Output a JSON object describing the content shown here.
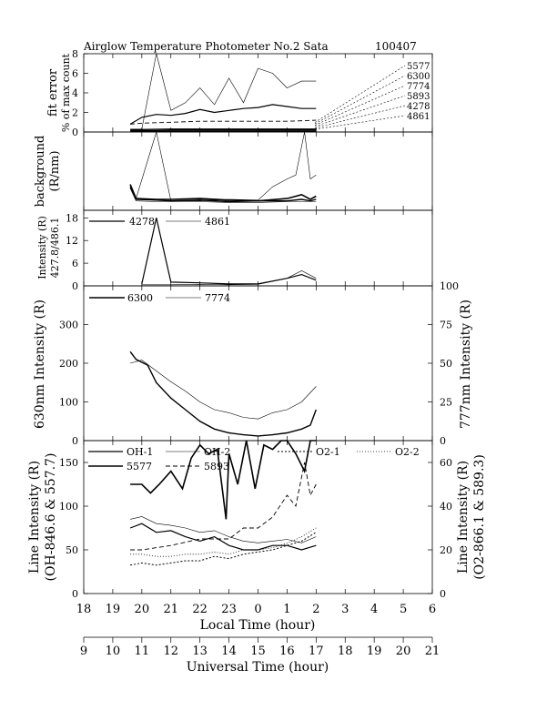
{
  "header": {
    "title": "Airglow Temperature Photometer No.2  Sata",
    "date_code": "100407"
  },
  "x_axes": {
    "local_label": "Local Time (hour)",
    "ut_label": "Universal Time (hour)",
    "local_ticks": [
      "18",
      "19",
      "20",
      "21",
      "22",
      "23",
      "0",
      "1",
      "2",
      "3",
      "4",
      "5",
      "6"
    ],
    "ut_ticks": [
      "9",
      "10",
      "11",
      "12",
      "13",
      "14",
      "15",
      "16",
      "17",
      "18",
      "19",
      "20",
      "21"
    ]
  },
  "chart_data": [
    {
      "type": "line",
      "panel": "fit-error",
      "ylabel": "fit error\n% of max count",
      "ylim": [
        0,
        8
      ],
      "yticks": [
        0,
        2,
        4,
        6,
        8
      ],
      "legend": [
        "5577",
        "6300",
        "7774",
        "5893",
        "4278",
        "4861"
      ],
      "series": [
        {
          "name": "4861",
          "x": [
            19.6,
            20,
            20.5,
            21,
            21.5,
            22,
            22.5,
            23,
            23.5,
            24,
            24.5,
            25,
            25.5,
            26
          ],
          "y": [
            0.3,
            0.3,
            8,
            2.2,
            3.0,
            4.5,
            2.8,
            5.5,
            3.0,
            6.5,
            6.0,
            4.5,
            5.2,
            5.2
          ]
        },
        {
          "name": "4278",
          "x": [
            19.6,
            20,
            20.5,
            21,
            21.5,
            22,
            22.5,
            23,
            23.5,
            24,
            24.5,
            25,
            25.5,
            26
          ],
          "y": [
            0.8,
            1.5,
            1.8,
            1.7,
            1.9,
            2.3,
            2.0,
            2.2,
            2.4,
            2.5,
            2.8,
            2.6,
            2.4,
            2.4
          ]
        },
        {
          "name": "5893",
          "x": [
            19.6,
            20,
            21,
            22,
            23,
            24,
            25,
            26
          ],
          "y": [
            0.8,
            0.9,
            1.0,
            1.1,
            1.1,
            1.1,
            1.1,
            1.2
          ]
        },
        {
          "name": "6300",
          "x": [
            19.6,
            20,
            21,
            22,
            23,
            24,
            25,
            26
          ],
          "y": [
            0.2,
            0.25,
            0.3,
            0.3,
            0.3,
            0.3,
            0.3,
            0.3
          ]
        },
        {
          "name": "7774",
          "x": [
            19.6,
            20,
            21,
            22,
            23,
            24,
            25,
            26
          ],
          "y": [
            0.15,
            0.15,
            0.2,
            0.2,
            0.2,
            0.2,
            0.2,
            0.2
          ]
        },
        {
          "name": "5577",
          "x": [
            19.6,
            20,
            21,
            22,
            23,
            24,
            25,
            26
          ],
          "y": [
            0.1,
            0.1,
            0.1,
            0.1,
            0.1,
            0.1,
            0.1,
            0.1
          ]
        }
      ]
    },
    {
      "type": "line",
      "panel": "background",
      "ylabel": "background\n(R/nm)",
      "series": [
        {
          "name": "4861",
          "x": [
            19.6,
            19.8,
            20.5,
            21,
            22,
            23,
            24,
            24.5,
            25,
            25.3,
            25.6,
            25.8,
            26
          ],
          "y": [
            30,
            15,
            100,
            12,
            12,
            14,
            13,
            30,
            40,
            45,
            100,
            40,
            45
          ]
        },
        {
          "name": "5577",
          "x": [
            19.6,
            19.8,
            20.5,
            21,
            22,
            23,
            24,
            25,
            25.5,
            25.8,
            26
          ],
          "y": [
            33,
            15,
            14,
            14,
            15,
            13,
            12,
            15,
            20,
            14,
            18
          ]
        },
        {
          "name": "6300",
          "x": [
            19.6,
            19.8,
            20.5,
            21,
            22,
            23,
            24,
            25,
            25.5,
            25.8,
            26
          ],
          "y": [
            30,
            14,
            13,
            12,
            13,
            11,
            12,
            12,
            14,
            12,
            14
          ]
        },
        {
          "name": "7774",
          "x": [
            19.6,
            19.8,
            20.5,
            21,
            22,
            23,
            24,
            25,
            26
          ],
          "y": [
            28,
            12,
            11,
            11,
            11,
            10,
            10,
            11,
            11
          ]
        }
      ]
    },
    {
      "type": "line",
      "panel": "intensity-blue",
      "ylabel": "Intensity (R)\n427.8/486.1",
      "ylim": [
        0,
        20
      ],
      "yticks": [
        0,
        6,
        12,
        18
      ],
      "legend": [
        "4278",
        "4861"
      ],
      "series": [
        {
          "name": "4278",
          "x": [
            20,
            20.5,
            21,
            22,
            23,
            24,
            25,
            25.5,
            26
          ],
          "y": [
            0.5,
            18,
            1,
            0.8,
            0.5,
            0.5,
            2,
            3,
            1.5
          ]
        },
        {
          "name": "4861",
          "x": [
            20,
            21,
            22,
            23,
            24,
            25,
            25.5,
            26
          ],
          "y": [
            0.3,
            0.3,
            0.4,
            0.3,
            0.4,
            2,
            4,
            2
          ]
        }
      ]
    },
    {
      "type": "line",
      "panel": "630-777",
      "ylabel": "630nm Intensity (R)",
      "y2label": "777nm Intensity (R)",
      "ylim": [
        0,
        400
      ],
      "yticks": [
        0,
        100,
        200,
        300
      ],
      "y2lim": [
        0,
        100
      ],
      "y2ticks": [
        0,
        25,
        50,
        75,
        100
      ],
      "legend": [
        "6300",
        "7774"
      ],
      "series": [
        {
          "name": "6300",
          "x": [
            19.6,
            19.8,
            20.2,
            20.5,
            21,
            21.5,
            22,
            22.5,
            23,
            23.5,
            24,
            24.5,
            25,
            25.5,
            25.8,
            26
          ],
          "y": [
            230,
            210,
            195,
            150,
            110,
            80,
            50,
            30,
            20,
            15,
            12,
            15,
            20,
            30,
            40,
            80
          ]
        },
        {
          "name": "7774",
          "x": [
            19.6,
            20,
            20.5,
            21,
            21.5,
            22,
            22.5,
            23,
            23.5,
            24,
            24.5,
            25,
            25.5,
            26
          ],
          "y": [
            50,
            52,
            45,
            38,
            32,
            25,
            20,
            18,
            15,
            14,
            18,
            20,
            25,
            35
          ]
        }
      ]
    },
    {
      "type": "line",
      "panel": "line-intensity",
      "ylabel": "Line Intensity (R)\n(OH-846.6 & 557.7)",
      "y2label": "Line Intensity (R)\n(O2-866.1 & 589.3)",
      "ylim": [
        0,
        175
      ],
      "yticks": [
        0,
        50,
        100,
        150
      ],
      "y2lim": [
        0,
        70
      ],
      "y2ticks": [
        0,
        20,
        40,
        60
      ],
      "legend": [
        "OH-1",
        "OH-2",
        "O2-1",
        "O2-2",
        "5577",
        "5893"
      ],
      "series": [
        {
          "name": "5577",
          "x": [
            19.6,
            20,
            20.3,
            20.6,
            21,
            21.4,
            21.7,
            22,
            22.3,
            22.6,
            22.9,
            23,
            23.3,
            23.6,
            23.9,
            24.2,
            24.5,
            24.8,
            25,
            25.3,
            25.6,
            25.8,
            26
          ],
          "y": [
            125,
            125,
            115,
            125,
            140,
            120,
            155,
            170,
            160,
            165,
            85,
            160,
            125,
            175,
            120,
            170,
            165,
            175,
            180,
            160,
            140,
            180,
            180
          ]
        },
        {
          "name": "5893",
          "x": [
            19.6,
            20,
            21,
            22,
            23,
            23.5,
            24,
            24.5,
            25,
            25.3,
            25.6,
            25.8,
            26
          ],
          "y": [
            20,
            20,
            22,
            25,
            25,
            30,
            30,
            35,
            45,
            40,
            60,
            45,
            50
          ]
        },
        {
          "name": "OH-1",
          "x": [
            19.6,
            20,
            20.5,
            21,
            21.5,
            22,
            22.5,
            23,
            23.5,
            24,
            24.5,
            25,
            25.5,
            26
          ],
          "y": [
            75,
            80,
            70,
            72,
            65,
            60,
            65,
            55,
            50,
            50,
            55,
            55,
            50,
            55
          ]
        },
        {
          "name": "OH-2",
          "x": [
            19.6,
            20,
            20.5,
            21,
            21.5,
            22,
            22.5,
            23,
            23.5,
            24,
            24.5,
            25,
            25.5,
            26
          ],
          "y": [
            85,
            88,
            80,
            78,
            75,
            70,
            72,
            65,
            60,
            58,
            60,
            62,
            58,
            65
          ]
        },
        {
          "name": "O2-1",
          "x": [
            19.6,
            20,
            20.5,
            21,
            21.5,
            22,
            22.5,
            23,
            23.5,
            24,
            24.5,
            25,
            25.5,
            26
          ],
          "y": [
            13,
            14,
            13,
            14,
            15,
            15,
            17,
            16,
            18,
            19,
            20,
            22,
            24,
            28
          ]
        },
        {
          "name": "O2-2",
          "x": [
            19.6,
            20,
            20.5,
            21,
            21.5,
            22,
            22.5,
            23,
            23.5,
            24,
            24.5,
            25,
            25.5,
            26
          ],
          "y": [
            18,
            18,
            17,
            17,
            18,
            18,
            19,
            18,
            20,
            20,
            21,
            23,
            26,
            30
          ]
        }
      ]
    }
  ]
}
